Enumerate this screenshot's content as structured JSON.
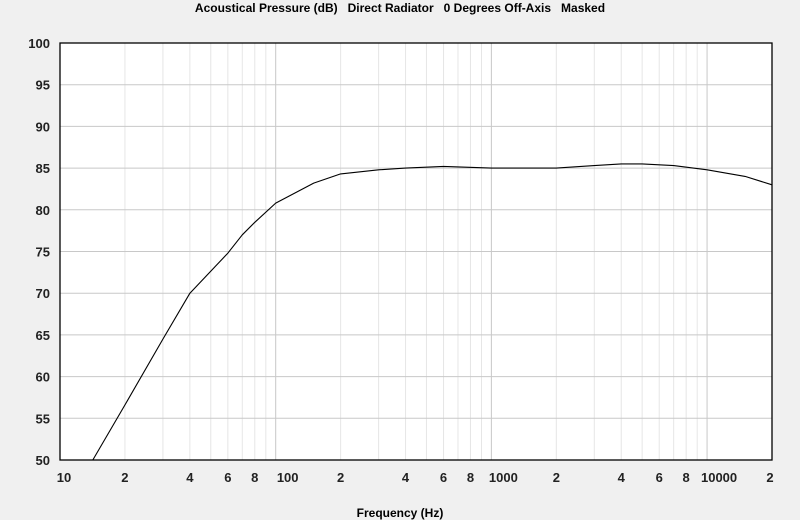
{
  "chart_data": {
    "type": "line",
    "title": "Acoustical Pressure (dB)   Direct Radiator   0 Degrees Off-Axis   Masked",
    "xlabel": "Frequency (Hz)",
    "ylabel": "",
    "x_scale": "log",
    "xlim": [
      10,
      20000
    ],
    "ylim": [
      50,
      100
    ],
    "grid": true,
    "x_ticks": [
      {
        "v": 10,
        "l": "10"
      },
      {
        "v": 20,
        "l": "2"
      },
      {
        "v": 40,
        "l": "4"
      },
      {
        "v": 60,
        "l": "6"
      },
      {
        "v": 80,
        "l": "8"
      },
      {
        "v": 100,
        "l": "100"
      },
      {
        "v": 200,
        "l": "2"
      },
      {
        "v": 400,
        "l": "4"
      },
      {
        "v": 600,
        "l": "6"
      },
      {
        "v": 800,
        "l": "8"
      },
      {
        "v": 1000,
        "l": "1000"
      },
      {
        "v": 2000,
        "l": "2"
      },
      {
        "v": 4000,
        "l": "4"
      },
      {
        "v": 6000,
        "l": "6"
      },
      {
        "v": 8000,
        "l": "8"
      },
      {
        "v": 10000,
        "l": "10000"
      },
      {
        "v": 20000,
        "l": "2"
      }
    ],
    "y_ticks": [
      50,
      55,
      60,
      65,
      70,
      75,
      80,
      85,
      90,
      95,
      100
    ],
    "series": [
      {
        "color": "#000000",
        "x": [
          14.2,
          20,
          30,
          40,
          60,
          70,
          80,
          100,
          150,
          200,
          300,
          400,
          600,
          1000,
          2000,
          3000,
          4000,
          5000,
          7000,
          10000,
          15000,
          20000
        ],
        "y": [
          50,
          56.6,
          64.5,
          70,
          74.8,
          77,
          78.5,
          80.8,
          83.2,
          84.3,
          84.8,
          85,
          85.2,
          85,
          85,
          85.3,
          85.5,
          85.5,
          85.3,
          84.8,
          84,
          83
        ]
      }
    ]
  }
}
